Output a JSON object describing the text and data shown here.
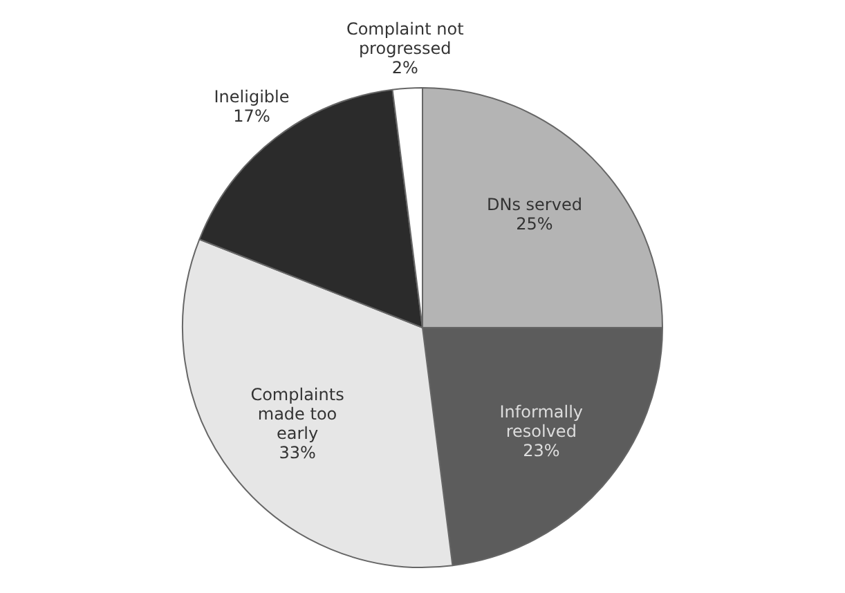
{
  "chart_data": {
    "type": "pie",
    "categories": [
      "DNs served",
      "Informally resolved",
      "Complaints made too early",
      "Ineligible",
      "Complaint not progressed"
    ],
    "values": [
      25,
      23,
      33,
      17,
      2
    ],
    "colors": [
      "#b4b4b4",
      "#5c5c5c",
      "#e6e6e6",
      "#2b2b2b",
      "#ffffff"
    ],
    "value_labels": [
      "25%",
      "23%",
      "33%",
      "17%",
      "2%"
    ],
    "legend": false
  }
}
